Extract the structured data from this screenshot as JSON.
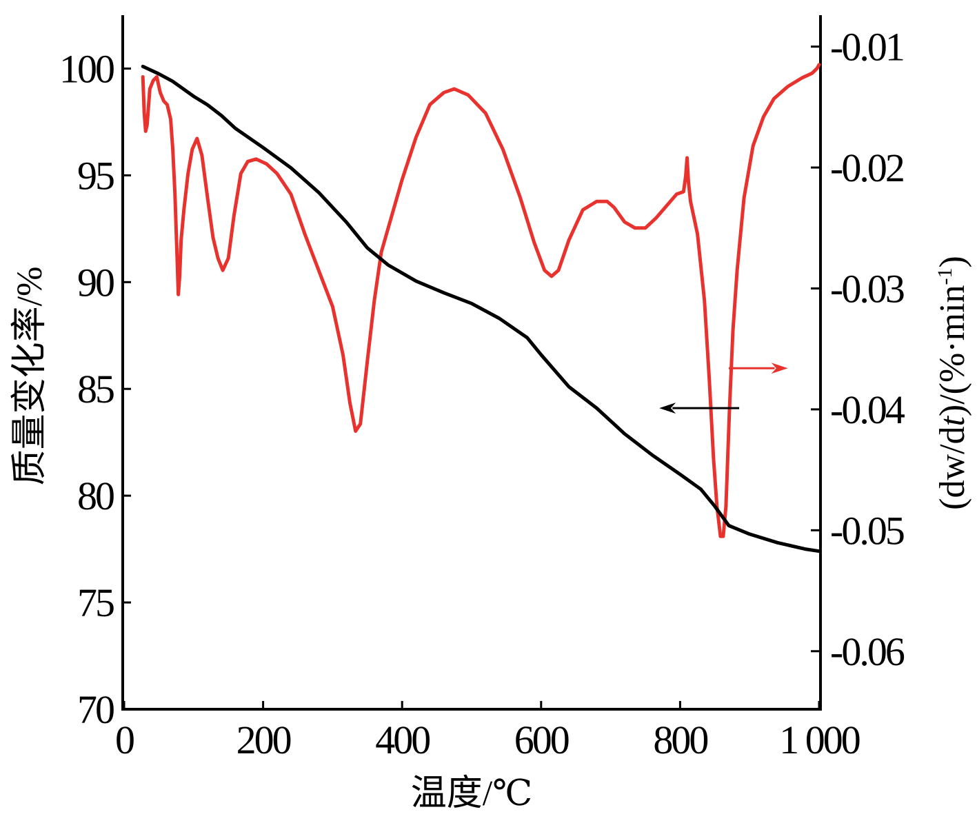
{
  "chart_data": {
    "type": "line",
    "title": "",
    "xlabel": "温度/℃",
    "ylabel_left": "质量变化率/%",
    "ylabel_right": "(dw/dt)/(%·min-1)",
    "ylabel_right_parts": {
      "open": "(dw/d",
      "italic_t": "t",
      "mid": ")/(%·min",
      "sup": "-1",
      "close": ")"
    },
    "xlim": [
      0,
      1000
    ],
    "ylim_left": [
      70,
      102.5
    ],
    "ylim_right": [
      -0.0648,
      -0.0074
    ],
    "x_ticks": [
      0,
      200,
      400,
      600,
      800,
      1000
    ],
    "x_tick_labels": [
      "0",
      "200",
      "400",
      "600",
      "800",
      "1 000"
    ],
    "y_left_ticks": [
      70,
      75,
      80,
      85,
      90,
      95,
      100
    ],
    "y_left_tick_labels": [
      "70",
      "75",
      "80",
      "85",
      "90",
      "95",
      "100"
    ],
    "y_right_ticks": [
      -0.06,
      -0.05,
      -0.04,
      -0.03,
      -0.02,
      -0.01
    ],
    "y_right_tick_labels": [
      "-0.06",
      "-0.05",
      "-0.04",
      "-0.03",
      "-0.02",
      "-0.01"
    ],
    "grid": false,
    "legend": "none",
    "colors": {
      "tg": "#000000",
      "dtg": "#e8322e",
      "axis": "#000000"
    },
    "series": [
      {
        "axis": "left",
        "color": "#000000",
        "points": [
          [
            27,
            100.1
          ],
          [
            50,
            99.75
          ],
          [
            70,
            99.4
          ],
          [
            100,
            98.7
          ],
          [
            120,
            98.3
          ],
          [
            140,
            97.8
          ],
          [
            160,
            97.2
          ],
          [
            200,
            96.3
          ],
          [
            240,
            95.35
          ],
          [
            280,
            94.2
          ],
          [
            320,
            92.8
          ],
          [
            350,
            91.6
          ],
          [
            380,
            90.8
          ],
          [
            420,
            90.05
          ],
          [
            460,
            89.5
          ],
          [
            500,
            89.0
          ],
          [
            540,
            88.3
          ],
          [
            580,
            87.4
          ],
          [
            600,
            86.6
          ],
          [
            640,
            85.1
          ],
          [
            680,
            84.1
          ],
          [
            720,
            82.9
          ],
          [
            760,
            81.9
          ],
          [
            800,
            81.0
          ],
          [
            830,
            80.3
          ],
          [
            850,
            79.5
          ],
          [
            870,
            78.6
          ],
          [
            900,
            78.2
          ],
          [
            940,
            77.8
          ],
          [
            980,
            77.5
          ],
          [
            1000,
            77.4
          ]
        ]
      },
      {
        "axis": "right",
        "color": "#e8322e",
        "points": [
          [
            27,
            -0.0125
          ],
          [
            29,
            -0.0155
          ],
          [
            31,
            -0.017
          ],
          [
            33,
            -0.0165
          ],
          [
            37,
            -0.0135
          ],
          [
            42,
            -0.0128
          ],
          [
            47,
            -0.0125
          ],
          [
            52,
            -0.0138
          ],
          [
            57,
            -0.0145
          ],
          [
            62,
            -0.0148
          ],
          [
            67,
            -0.016
          ],
          [
            70,
            -0.0185
          ],
          [
            73,
            -0.022
          ],
          [
            76,
            -0.027
          ],
          [
            78,
            -0.0305
          ],
          [
            80,
            -0.029
          ],
          [
            82,
            -0.026
          ],
          [
            86,
            -0.0235
          ],
          [
            92,
            -0.0205
          ],
          [
            98,
            -0.0185
          ],
          [
            105,
            -0.0176
          ],
          [
            112,
            -0.019
          ],
          [
            120,
            -0.0225
          ],
          [
            128,
            -0.0258
          ],
          [
            135,
            -0.0275
          ],
          [
            142,
            -0.0285
          ],
          [
            150,
            -0.0275
          ],
          [
            158,
            -0.024
          ],
          [
            168,
            -0.0205
          ],
          [
            178,
            -0.0195
          ],
          [
            190,
            -0.0193
          ],
          [
            205,
            -0.0197
          ],
          [
            220,
            -0.0205
          ],
          [
            240,
            -0.0222
          ],
          [
            260,
            -0.0255
          ],
          [
            280,
            -0.0285
          ],
          [
            300,
            -0.0315
          ],
          [
            315,
            -0.0355
          ],
          [
            325,
            -0.0395
          ],
          [
            333,
            -0.0418
          ],
          [
            340,
            -0.0412
          ],
          [
            350,
            -0.036
          ],
          [
            360,
            -0.031
          ],
          [
            370,
            -0.027
          ],
          [
            385,
            -0.024
          ],
          [
            400,
            -0.021
          ],
          [
            420,
            -0.0175
          ],
          [
            440,
            -0.0148
          ],
          [
            460,
            -0.0138
          ],
          [
            475,
            -0.0135
          ],
          [
            495,
            -0.014
          ],
          [
            520,
            -0.0155
          ],
          [
            545,
            -0.0185
          ],
          [
            570,
            -0.0225
          ],
          [
            590,
            -0.0262
          ],
          [
            605,
            -0.0285
          ],
          [
            615,
            -0.029
          ],
          [
            625,
            -0.0285
          ],
          [
            640,
            -0.026
          ],
          [
            660,
            -0.0235
          ],
          [
            680,
            -0.0228
          ],
          [
            695,
            -0.0228
          ],
          [
            705,
            -0.0233
          ],
          [
            720,
            -0.0245
          ],
          [
            735,
            -0.025
          ],
          [
            750,
            -0.025
          ],
          [
            765,
            -0.0242
          ],
          [
            780,
            -0.0232
          ],
          [
            795,
            -0.0222
          ],
          [
            805,
            -0.022
          ],
          [
            808,
            -0.0207
          ],
          [
            810,
            -0.0192
          ],
          [
            812,
            -0.0212
          ],
          [
            815,
            -0.0228
          ],
          [
            825,
            -0.0255
          ],
          [
            835,
            -0.031
          ],
          [
            842,
            -0.0375
          ],
          [
            848,
            -0.044
          ],
          [
            853,
            -0.048
          ],
          [
            858,
            -0.0505
          ],
          [
            862,
            -0.0505
          ],
          [
            866,
            -0.048
          ],
          [
            871,
            -0.04
          ],
          [
            876,
            -0.0335
          ],
          [
            882,
            -0.0285
          ],
          [
            892,
            -0.0225
          ],
          [
            905,
            -0.0182
          ],
          [
            920,
            -0.0158
          ],
          [
            935,
            -0.0143
          ],
          [
            955,
            -0.0133
          ],
          [
            975,
            -0.0126
          ],
          [
            990,
            -0.0122
          ],
          [
            997,
            -0.0118
          ],
          [
            1000,
            -0.0115
          ]
        ]
      }
    ],
    "annotations": [
      {
        "type": "arrow",
        "color": "#000000",
        "from": [
          885,
          84.1
        ],
        "to": [
          770,
          84.1
        ]
      },
      {
        "type": "arrow",
        "color": "#e8322e",
        "from": [
          870,
          -0.0366
        ],
        "to": [
          955,
          -0.0366
        ]
      }
    ]
  }
}
